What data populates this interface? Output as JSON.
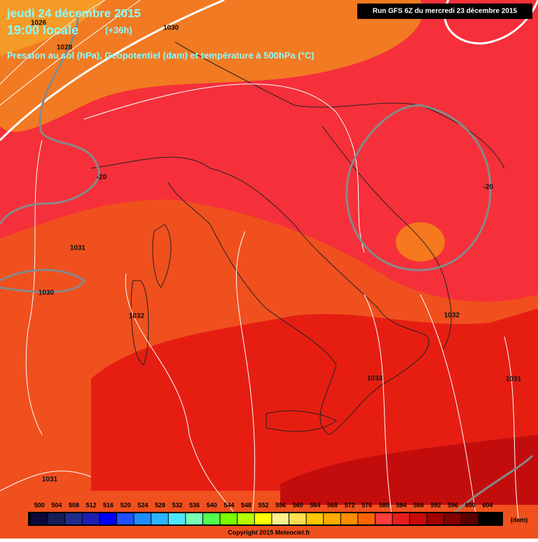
{
  "header": {
    "date": "jeudi 24 décembre 2015",
    "time": "19:00 locale",
    "lead": "(+36h)",
    "subtitle": "Pression au sol (hPa), Geopotentiel (dam) et température à 500hPa (°C)",
    "run": "Run GFS 6Z du mercredi 23 décembre 2015"
  },
  "map": {
    "isobar_labels": [
      "1026",
      "1030",
      "1028",
      "1031",
      "1030",
      "1032",
      "1033",
      "1032",
      "1031",
      "1031"
    ],
    "isotherm_labels": [
      "-20",
      "-20"
    ]
  },
  "legend": {
    "labels": [
      "500",
      "504",
      "508",
      "512",
      "516",
      "520",
      "524",
      "528",
      "532",
      "536",
      "540",
      "544",
      "548",
      "552",
      "556",
      "560",
      "564",
      "568",
      "572",
      "576",
      "580",
      "584",
      "588",
      "592",
      "596",
      "600",
      "604"
    ],
    "colors": [
      "#0a0a3c",
      "#141e5a",
      "#1e2d8c",
      "#1e1eb4",
      "#0000ff",
      "#1e50ff",
      "#1e8cff",
      "#28b4ff",
      "#50e6ff",
      "#78ffb4",
      "#50ff50",
      "#78ff00",
      "#b4ff00",
      "#ffff00",
      "#fff08c",
      "#ffdc50",
      "#ffc800",
      "#ffaa00",
      "#ff8c00",
      "#ff6400",
      "#ff3c3c",
      "#e61e1e",
      "#c80a0a",
      "#a00000",
      "#820000",
      "#5a0000",
      "#000000"
    ],
    "unit": "(dam)"
  },
  "footer": {
    "copyright": "Copyright 2015 Meteociel.fr"
  }
}
